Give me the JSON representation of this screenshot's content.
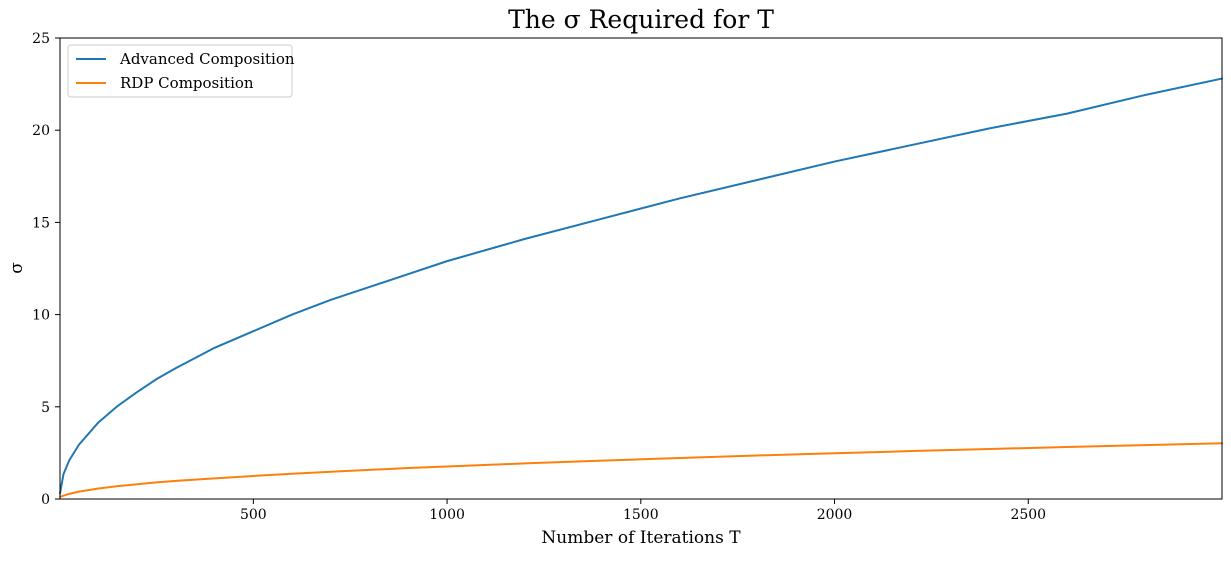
{
  "chart_data": {
    "type": "line",
    "title": "The σ Required for T",
    "xlabel": "Number of Iterations T",
    "ylabel": "σ",
    "xlim": [
      1,
      3000
    ],
    "ylim": [
      0,
      25
    ],
    "xticks": [
      500,
      1000,
      1500,
      2000,
      2500
    ],
    "yticks": [
      0,
      5,
      10,
      15,
      20,
      25
    ],
    "grid": false,
    "legend_position": "upper-left",
    "series": [
      {
        "name": "Advanced Composition",
        "color": "#1f77b4",
        "x": [
          1,
          10,
          25,
          50,
          100,
          150,
          200,
          250,
          300,
          400,
          500,
          600,
          700,
          800,
          900,
          1000,
          1200,
          1400,
          1600,
          1800,
          2000,
          2200,
          2400,
          2600,
          2800,
          3000
        ],
        "y": [
          0.3,
          1.35,
          2.1,
          2.95,
          4.15,
          5.05,
          5.8,
          6.5,
          7.1,
          8.2,
          9.1,
          10.0,
          10.8,
          11.5,
          12.2,
          12.9,
          14.1,
          15.2,
          16.3,
          17.3,
          18.3,
          19.2,
          20.1,
          20.9,
          21.9,
          22.8
        ]
      },
      {
        "name": "RDP Composition",
        "color": "#ff7f0e",
        "x": [
          1,
          10,
          25,
          50,
          100,
          150,
          200,
          250,
          300,
          400,
          500,
          600,
          700,
          800,
          900,
          1000,
          1200,
          1400,
          1600,
          1800,
          2000,
          2200,
          2400,
          2600,
          2800,
          3000
        ],
        "y": [
          0.12,
          0.18,
          0.28,
          0.4,
          0.57,
          0.7,
          0.8,
          0.9,
          0.98,
          1.12,
          1.25,
          1.37,
          1.48,
          1.58,
          1.68,
          1.76,
          1.93,
          2.08,
          2.22,
          2.36,
          2.48,
          2.6,
          2.71,
          2.82,
          2.92,
          3.02
        ]
      }
    ]
  }
}
